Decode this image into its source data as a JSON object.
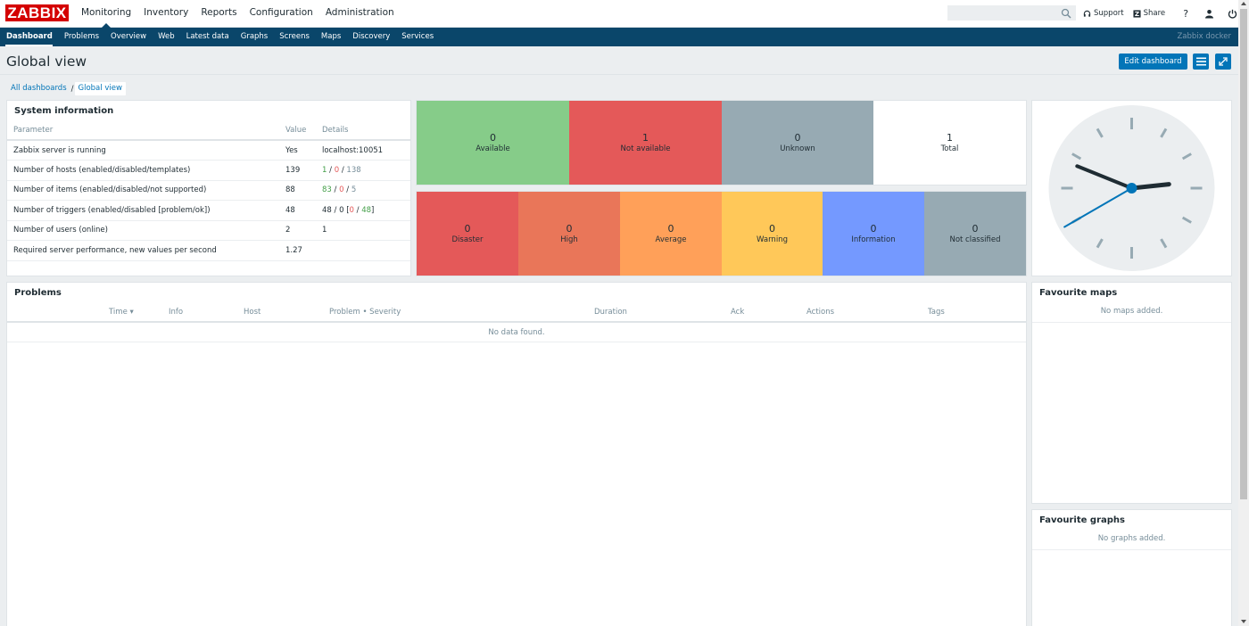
{
  "app": {
    "logo": "ZABBIX",
    "server_name": "Zabbix docker"
  },
  "main_menu": [
    {
      "label": "Monitoring",
      "active": true
    },
    {
      "label": "Inventory"
    },
    {
      "label": "Reports"
    },
    {
      "label": "Configuration"
    },
    {
      "label": "Administration"
    }
  ],
  "header": {
    "search_value": "",
    "support_label": "Support",
    "share_label": "Share",
    "help_label": "?"
  },
  "sub_menu": [
    {
      "label": "Dashboard",
      "active": true
    },
    {
      "label": "Problems"
    },
    {
      "label": "Overview"
    },
    {
      "label": "Web"
    },
    {
      "label": "Latest data"
    },
    {
      "label": "Graphs"
    },
    {
      "label": "Screens"
    },
    {
      "label": "Maps"
    },
    {
      "label": "Discovery"
    },
    {
      "label": "Services"
    }
  ],
  "page": {
    "title": "Global view",
    "edit_button": "Edit dashboard",
    "breadcrumb": {
      "parent": "All dashboards",
      "separator": "/",
      "current": "Global view"
    }
  },
  "system_info": {
    "title": "System information",
    "headers": {
      "param": "Parameter",
      "value": "Value",
      "details": "Details"
    },
    "rows": [
      {
        "param": "Zabbix server is running",
        "value": "Yes",
        "details": "localhost:10051"
      },
      {
        "param": "Number of hosts (enabled/disabled/templates)",
        "value": "139",
        "d1": "1",
        "s1": " / ",
        "d2": "0",
        "s2": " / ",
        "d3": "138"
      },
      {
        "param": "Number of items (enabled/disabled/not supported)",
        "value": "88",
        "d1": "83",
        "s1": " / ",
        "d2": "0",
        "s2": " / ",
        "d3": "5"
      },
      {
        "param": "Number of triggers (enabled/disabled [problem/ok])",
        "value": "48",
        "d_pre": "48 / 0 [",
        "d1": "0",
        "s1": " / ",
        "d2": "48",
        "d_post": "]"
      },
      {
        "param": "Number of users (online)",
        "value": "2",
        "details": "1"
      },
      {
        "param": "Required server performance, new values per second",
        "value": "1.27",
        "details": ""
      }
    ]
  },
  "host_availability": [
    {
      "count": "0",
      "label": "Available",
      "color": "#86cc89"
    },
    {
      "count": "1",
      "label": "Not available",
      "color": "#e45959"
    },
    {
      "count": "0",
      "label": "Unknown",
      "color": "#97aab3"
    },
    {
      "count": "1",
      "label": "Total",
      "color": "#ffffff"
    }
  ],
  "problems_by_severity": [
    {
      "count": "0",
      "label": "Disaster",
      "color": "#e45959"
    },
    {
      "count": "0",
      "label": "High",
      "color": "#e97659"
    },
    {
      "count": "0",
      "label": "Average",
      "color": "#ffa059"
    },
    {
      "count": "0",
      "label": "Warning",
      "color": "#ffc859"
    },
    {
      "count": "0",
      "label": "Information",
      "color": "#7499ff"
    },
    {
      "count": "0",
      "label": "Not classified",
      "color": "#97aab3"
    }
  ],
  "problems": {
    "title": "Problems",
    "columns": [
      "Time ▾",
      "Info",
      "Host",
      "Problem • Severity",
      "Duration",
      "Ack",
      "Actions",
      "Tags"
    ],
    "empty": "No data found."
  },
  "favourite_maps": {
    "title": "Favourite maps",
    "empty": "No maps added."
  },
  "favourite_graphs": {
    "title": "Favourite graphs",
    "empty": "No graphs added."
  },
  "clock": {
    "hours": 2,
    "minutes": 48,
    "seconds": 40
  }
}
